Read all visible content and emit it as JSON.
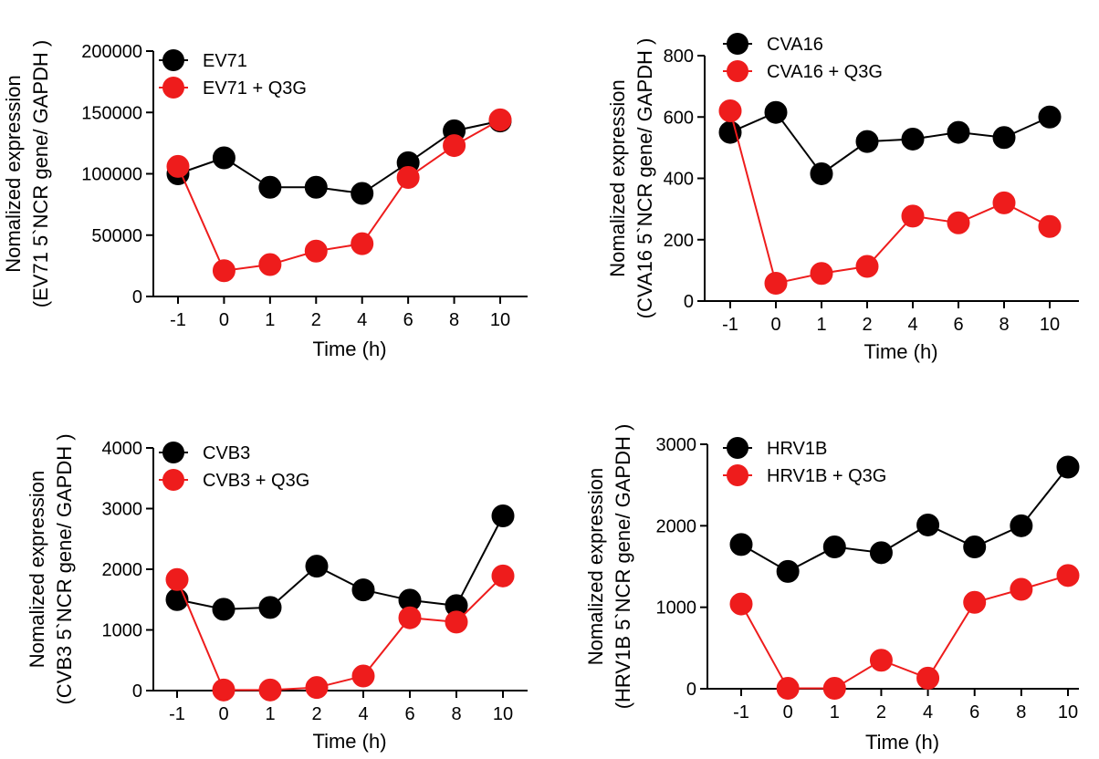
{
  "chart_data": [
    {
      "type": "line",
      "categories": [
        "-1",
        "0",
        "1",
        "2",
        "4",
        "6",
        "8",
        "10"
      ],
      "ylabel": [
        "Nomalized expression",
        "(EV71 5`NCR gene/ GAPDH )"
      ],
      "xlabel": "Time (h)",
      "ylim": [
        0,
        200000
      ],
      "yticks": [
        "0",
        "50000",
        "100000",
        "150000",
        "200000"
      ],
      "legend_position": "top-left",
      "series": [
        {
          "name": "EV71",
          "color": "#000000",
          "values": [
            100000,
            113000,
            89000,
            89000,
            84000,
            109000,
            135000,
            143000
          ]
        },
        {
          "name": "EV71 + Q3G",
          "color": "#ee1c1c",
          "values": [
            106000,
            21000,
            26000,
            37000,
            43000,
            97000,
            123000,
            144000
          ]
        }
      ]
    },
    {
      "type": "line",
      "categories": [
        "-1",
        "0",
        "1",
        "2",
        "4",
        "6",
        "8",
        "10"
      ],
      "ylabel": [
        "Nomalized expression",
        "(CVA16 5`NCR gene/ GAPDH )"
      ],
      "xlabel": "Time (h)",
      "ylim": [
        0,
        800
      ],
      "yticks": [
        "0",
        "200",
        "400",
        "600",
        "800"
      ],
      "legend_position": "top-left",
      "series": [
        {
          "name": "CVA16",
          "color": "#000000",
          "values": [
            550,
            615,
            415,
            520,
            528,
            550,
            533,
            600
          ]
        },
        {
          "name": "CVA16 + Q3G",
          "color": "#ee1c1c",
          "values": [
            620,
            58,
            90,
            113,
            277,
            255,
            320,
            243
          ]
        }
      ]
    },
    {
      "type": "line",
      "categories": [
        "-1",
        "0",
        "1",
        "2",
        "4",
        "6",
        "8",
        "10"
      ],
      "ylabel": [
        "Nomalized expression",
        "(CVB3 5`NCR gene/ GAPDH )"
      ],
      "xlabel": "Time (h)",
      "ylim": [
        0,
        4000
      ],
      "yticks": [
        "0",
        "1000",
        "2000",
        "3000",
        "4000"
      ],
      "legend_position": "top-left",
      "series": [
        {
          "name": "CVB3",
          "color": "#000000",
          "values": [
            1500,
            1340,
            1370,
            2050,
            1660,
            1490,
            1400,
            2880
          ]
        },
        {
          "name": "CVB3 + Q3G",
          "color": "#ee1c1c",
          "values": [
            1830,
            10,
            10,
            50,
            240,
            1200,
            1130,
            1890
          ]
        }
      ]
    },
    {
      "type": "line",
      "categories": [
        "-1",
        "0",
        "1",
        "2",
        "4",
        "6",
        "8",
        "10"
      ],
      "ylabel": [
        "Nomalized expression",
        "(HRV1B 5`NCR gene/ GAPDH )"
      ],
      "xlabel": "Time (h)",
      "ylim": [
        0,
        3000
      ],
      "yticks": [
        "0",
        "1000",
        "2000",
        "3000"
      ],
      "legend_position": "top-left",
      "series": [
        {
          "name": "HRV1B",
          "color": "#000000",
          "values": [
            1770,
            1440,
            1740,
            1670,
            2010,
            1740,
            2000,
            2720
          ]
        },
        {
          "name": "HRV1B + Q3G",
          "color": "#ee1c1c",
          "values": [
            1040,
            5,
            5,
            350,
            130,
            1060,
            1220,
            1390
          ]
        }
      ]
    }
  ]
}
